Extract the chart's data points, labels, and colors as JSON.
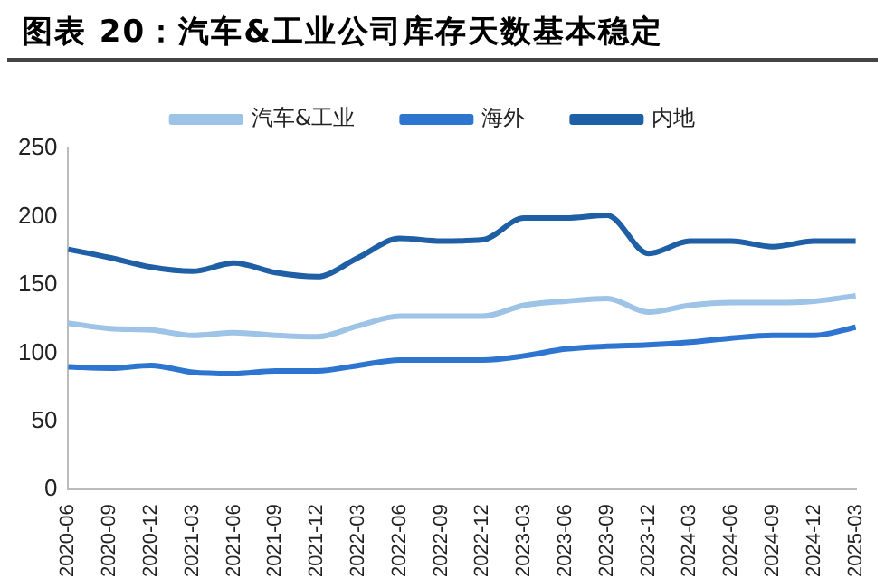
{
  "chart_data": {
    "type": "line",
    "title": "图表 20：汽车&工业公司库存天数基本稳定",
    "categories": [
      "2020-06",
      "2020-09",
      "2020-12",
      "2021-03",
      "2021-06",
      "2021-09",
      "2021-12",
      "2022-03",
      "2022-06",
      "2022-09",
      "2022-12",
      "2023-03",
      "2023-06",
      "2023-09",
      "2023-12",
      "2024-03",
      "2024-06",
      "2024-09",
      "2024-12",
      "2025-03"
    ],
    "series": [
      {
        "name": "汽车&工业",
        "color": "#9dc3e6",
        "values": [
          122,
          118,
          117,
          113,
          115,
          113,
          112,
          120,
          127,
          127,
          127,
          135,
          138,
          140,
          130,
          135,
          137,
          137,
          138,
          142
        ]
      },
      {
        "name": "海外",
        "color": "#2e75d0",
        "values": [
          90,
          89,
          91,
          86,
          85,
          87,
          87,
          91,
          95,
          95,
          95,
          98,
          103,
          105,
          106,
          108,
          111,
          113,
          113,
          119
        ]
      },
      {
        "name": "内地",
        "color": "#1f5fa5",
        "values": [
          176,
          170,
          163,
          160,
          166,
          159,
          156,
          170,
          184,
          182,
          183,
          199,
          199,
          201,
          173,
          182,
          182,
          178,
          182,
          182
        ]
      }
    ],
    "ylim": [
      0,
      250
    ],
    "yticks": [
      0,
      50,
      100,
      150,
      200,
      250
    ],
    "grid": false,
    "legend": "top",
    "marker": "none",
    "line_style": "solid"
  }
}
